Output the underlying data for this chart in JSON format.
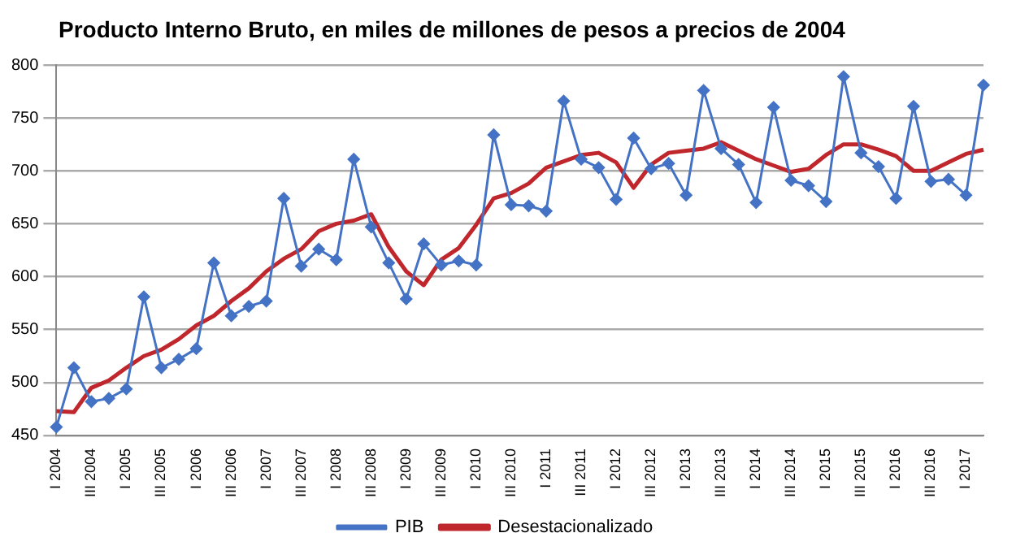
{
  "chart_data": {
    "type": "line",
    "title": "Producto Interno Bruto, en miles de millones de pesos a precios de 2004",
    "categories": [
      "I 2004",
      null,
      "III 2004",
      null,
      "I 2005",
      null,
      "III 2005",
      null,
      "I 2006",
      null,
      "III 2006",
      null,
      "I 2007",
      null,
      "III 2007",
      null,
      "I 2008",
      null,
      "III 2008",
      null,
      "I 2009",
      null,
      "III 2009",
      null,
      "I 2010",
      null,
      "III 2010",
      null,
      "I 2011",
      null,
      "III 2011",
      null,
      "I 2012",
      null,
      "III 2012",
      null,
      "I 2013",
      null,
      "III 2013",
      null,
      "I 2014",
      null,
      "III 2014",
      null,
      "I 2015",
      null,
      "III 2015",
      null,
      "I 2016",
      null,
      "III 2016",
      null,
      "I 2017",
      null
    ],
    "series": [
      {
        "name": "PIB",
        "color": "#4472c4",
        "marker": "diamond",
        "values": [
          458,
          514,
          482,
          485,
          494,
          581,
          514,
          522,
          532,
          613,
          563,
          572,
          577,
          674,
          610,
          626,
          616,
          711,
          647,
          613,
          579,
          631,
          611,
          615,
          611,
          734,
          668,
          667,
          662,
          766,
          711,
          703,
          673,
          731,
          702,
          707,
          677,
          776,
          721,
          706,
          670,
          760,
          691,
          686,
          671,
          789,
          717,
          704,
          674,
          761,
          690,
          692,
          677,
          781
        ]
      },
      {
        "name": "Desestacionalizado",
        "color": "#c0272d",
        "marker": "none",
        "values": [
          473,
          472,
          495,
          502,
          514,
          525,
          531,
          541,
          554,
          563,
          577,
          589,
          605,
          617,
          626,
          643,
          650,
          653,
          659,
          628,
          605,
          592,
          616,
          627,
          649,
          674,
          679,
          688,
          703,
          709,
          715,
          717,
          708,
          684,
          706,
          717,
          719,
          721,
          727,
          719,
          711,
          705,
          699,
          702,
          715,
          725,
          725,
          720,
          714,
          700,
          700,
          708,
          716,
          720
        ]
      }
    ],
    "ylim": [
      450,
      800
    ],
    "yticks": [
      450,
      500,
      550,
      600,
      650,
      700,
      750,
      800
    ],
    "grid": "y",
    "legend": "bottom",
    "line_style": "solid"
  }
}
